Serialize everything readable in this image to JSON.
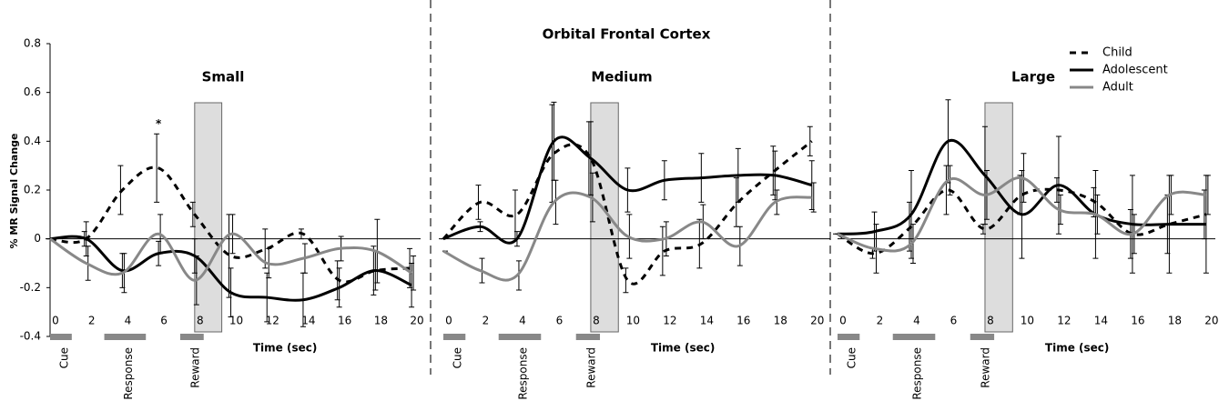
{
  "title": "Orbital Frontal Cortex",
  "chart_data": [
    {
      "type": "line",
      "label": "Small",
      "y_label": "% MR Signal Change",
      "x_label": "Time (sec)",
      "xlim": [
        0,
        20.5
      ],
      "ylim": [
        -0.4,
        0.8
      ],
      "yticks": [
        -0.4,
        -0.2,
        0,
        0.2,
        0.4,
        0.6,
        0.8
      ],
      "xticks": [
        0,
        2,
        4,
        6,
        8,
        10,
        12,
        14,
        16,
        18,
        20
      ],
      "x": [
        0,
        2,
        4,
        6,
        8,
        10,
        12,
        14,
        16,
        18,
        20
      ],
      "highlight": [
        8,
        9.5
      ],
      "annotations": [
        {
          "text": "*",
          "x": 6,
          "y": 0.47
        }
      ],
      "events": [
        {
          "label": "Cue",
          "start": 0,
          "end": 1.2
        },
        {
          "label": "Response",
          "start": 3,
          "end": 5.3
        },
        {
          "label": "Reward",
          "start": 7.2,
          "end": 8.5
        }
      ],
      "series": [
        {
          "name": "Child",
          "color": "#000",
          "style": "dashed",
          "values": [
            0,
            0,
            0.2,
            0.29,
            0.1,
            -0.07,
            -0.04,
            0.02,
            -0.17,
            -0.13,
            -0.12
          ],
          "errors": [
            0,
            0.03,
            0.1,
            0.14,
            0.05,
            0.17,
            0.08,
            0.02,
            0.08,
            0.1,
            0.08
          ]
        },
        {
          "name": "Adolescent",
          "color": "#000",
          "style": "solid",
          "values": [
            0,
            0,
            -0.13,
            -0.06,
            -0.07,
            -0.22,
            -0.24,
            -0.25,
            -0.2,
            -0.13,
            -0.19
          ],
          "errors": [
            0,
            0.07,
            0.07,
            0.05,
            0.07,
            0.1,
            0.1,
            0.11,
            0.08,
            0.08,
            0.09
          ]
        },
        {
          "name": "Adult",
          "color": "#888",
          "style": "solid",
          "values": [
            0,
            -0.1,
            -0.14,
            0.02,
            -0.17,
            0.02,
            -0.1,
            -0.08,
            -0.04,
            -0.05,
            -0.14
          ],
          "errors": [
            0,
            0.07,
            0.08,
            0.08,
            0.1,
            0.08,
            0.06,
            0.06,
            0.05,
            0.13,
            0.07
          ]
        }
      ]
    },
    {
      "type": "line",
      "label": "Medium",
      "x_label": "Time (sec)",
      "xlim": [
        0,
        21
      ],
      "ylim": [
        -0.4,
        0.8
      ],
      "xticks": [
        0,
        2,
        4,
        6,
        8,
        10,
        12,
        14,
        16,
        18,
        20
      ],
      "x": [
        0,
        2,
        4,
        6,
        8,
        10,
        12,
        14,
        16,
        18,
        20
      ],
      "highlight": [
        8,
        9.5
      ],
      "events": [
        {
          "label": "Cue",
          "start": 0,
          "end": 1.2
        },
        {
          "label": "Response",
          "start": 3,
          "end": 5.3
        },
        {
          "label": "Reward",
          "start": 7.2,
          "end": 8.5
        }
      ],
      "series": [
        {
          "name": "Child",
          "color": "#000",
          "style": "dashed",
          "values": [
            0,
            0.15,
            0.1,
            0.35,
            0.33,
            -0.17,
            -0.05,
            -0.02,
            0.15,
            0.28,
            0.4
          ],
          "errors": [
            0,
            0.07,
            0.1,
            0.2,
            0.15,
            0.05,
            0.1,
            0.1,
            0.1,
            0.1,
            0.06
          ]
        },
        {
          "name": "Adolescent",
          "color": "#000",
          "style": "solid",
          "values": [
            0,
            0.05,
            0,
            0.4,
            0.33,
            0.2,
            0.24,
            0.25,
            0.26,
            0.26,
            0.22
          ],
          "errors": [
            0,
            0.02,
            0.03,
            0.16,
            0.15,
            0.09,
            0.08,
            0.1,
            0.11,
            0.1,
            0.1
          ]
        },
        {
          "name": "Adult",
          "color": "#888",
          "style": "solid",
          "values": [
            -0.05,
            -0.13,
            -0.15,
            0.15,
            0.17,
            0.01,
            0,
            0.07,
            -0.03,
            0.15,
            0.17
          ],
          "errors": [
            0,
            0.05,
            0.06,
            0.09,
            0.1,
            0.09,
            0.07,
            0.07,
            0.08,
            0.05,
            0.06
          ]
        }
      ]
    },
    {
      "type": "line",
      "label": "Large",
      "x_label": "Time (sec)",
      "xlim": [
        0,
        20.5
      ],
      "ylim": [
        -0.4,
        0.8
      ],
      "xticks": [
        0,
        2,
        4,
        6,
        8,
        10,
        12,
        14,
        16,
        18,
        20
      ],
      "x": [
        0,
        2,
        4,
        6,
        8,
        10,
        12,
        14,
        16,
        18,
        20
      ],
      "highlight": [
        8,
        9.5
      ],
      "legend": "top-right",
      "events": [
        {
          "label": "Cue",
          "start": 0,
          "end": 1.2
        },
        {
          "label": "Response",
          "start": 3,
          "end": 5.3
        },
        {
          "label": "Reward",
          "start": 7.2,
          "end": 8.5
        }
      ],
      "series": [
        {
          "name": "Child",
          "color": "#000",
          "style": "dashed",
          "values": [
            0.02,
            -0.06,
            0.05,
            0.2,
            0.04,
            0.18,
            0.2,
            0.15,
            0.02,
            0.06,
            0.1
          ],
          "errors": [
            0,
            0.02,
            0.1,
            0.1,
            0.02,
            0.08,
            0.05,
            0.06,
            0.1,
            0.12,
            0.1
          ]
        },
        {
          "name": "Adolescent",
          "color": "#000",
          "style": "solid",
          "values": [
            0.02,
            0.03,
            0.1,
            0.4,
            0.26,
            0.1,
            0.22,
            0.1,
            0.06,
            0.06,
            0.06
          ],
          "errors": [
            0,
            0.08,
            0.18,
            0.17,
            0.2,
            0.18,
            0.2,
            0.18,
            0.2,
            0.2,
            0.2
          ]
        },
        {
          "name": "Adult",
          "color": "#888",
          "style": "solid",
          "values": [
            0.02,
            -0.04,
            -0.02,
            0.24,
            0.18,
            0.25,
            0.12,
            0.1,
            0.02,
            0.18,
            0.18
          ],
          "errors": [
            0,
            0.1,
            0.08,
            0.06,
            0.1,
            0.1,
            0.06,
            0.08,
            0.08,
            0.08,
            0.08
          ]
        }
      ]
    }
  ]
}
